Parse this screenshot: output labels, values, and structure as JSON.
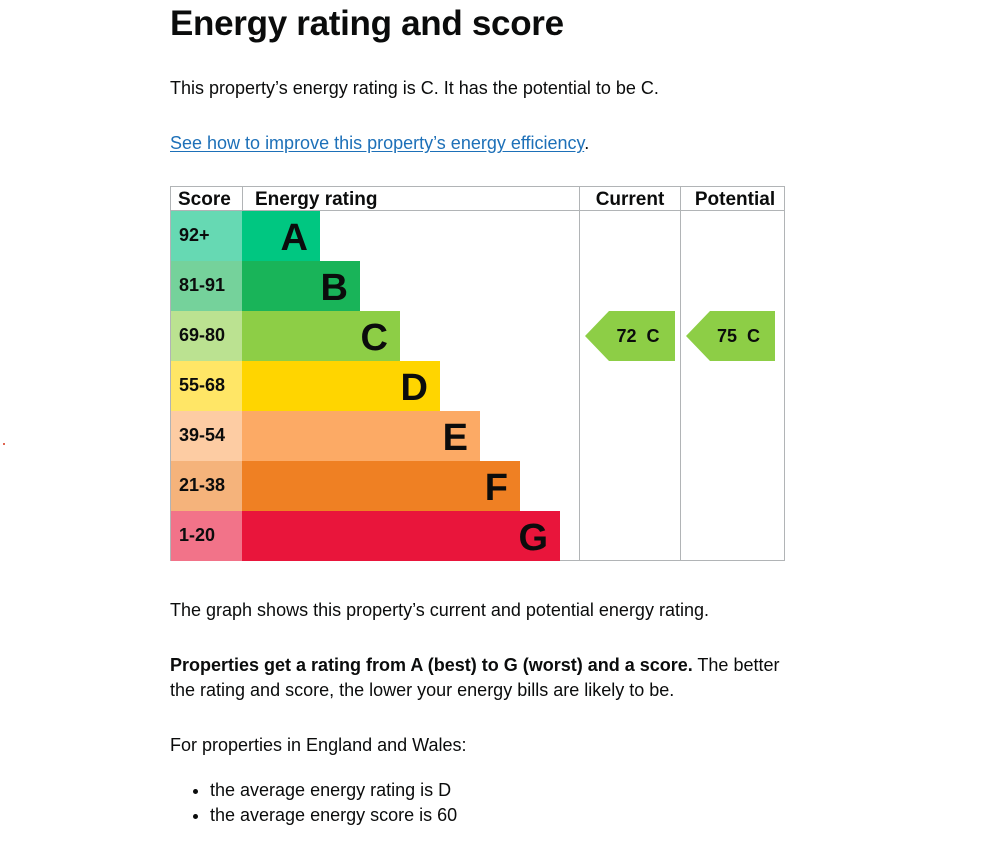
{
  "title": "Energy rating and score",
  "intro_text": "This property’s energy rating is C. It has the potential to be C.",
  "improve_link": "See how to improve this property’s energy efficiency",
  "improve_suffix": ".",
  "table_headers": {
    "score": "Score",
    "rating": "Energy rating",
    "current": "Current",
    "potential": "Potential"
  },
  "bands": [
    {
      "score": "92+",
      "letter": "A",
      "color": "#00c781",
      "score_bg": "#66d9b3"
    },
    {
      "score": "81-91",
      "letter": "B",
      "color": "#19b459",
      "score_bg": "#75d29b"
    },
    {
      "score": "69-80",
      "letter": "C",
      "color": "#8dce46",
      "score_bg": "#bbe291"
    },
    {
      "score": "55-68",
      "letter": "D",
      "color": "#ffd500",
      "score_bg": "#ffe666"
    },
    {
      "score": "39-54",
      "letter": "E",
      "color": "#fcaa65",
      "score_bg": "#fdcca3"
    },
    {
      "score": "21-38",
      "letter": "F",
      "color": "#ef8023",
      "score_bg": "#f5b37b"
    },
    {
      "score": "1-20",
      "letter": "G",
      "color": "#e9153b",
      "score_bg": "#f27389"
    }
  ],
  "current": {
    "label": "72  C",
    "band": "C",
    "color": "#8dce46"
  },
  "potential": {
    "label": "75  C",
    "band": "C",
    "color": "#8dce46"
  },
  "graph_note": "The graph shows this property’s current and potential energy rating.",
  "rating_note_bold": "Properties get a rating from A (best) to G (worst) and a score.",
  "rating_note_rest": " The better the rating and score, the lower your energy bills are likely to be.",
  "ew_note": "For properties in England and Wales:",
  "averages": [
    "the average energy rating is D",
    "the average energy score is 60"
  ]
}
